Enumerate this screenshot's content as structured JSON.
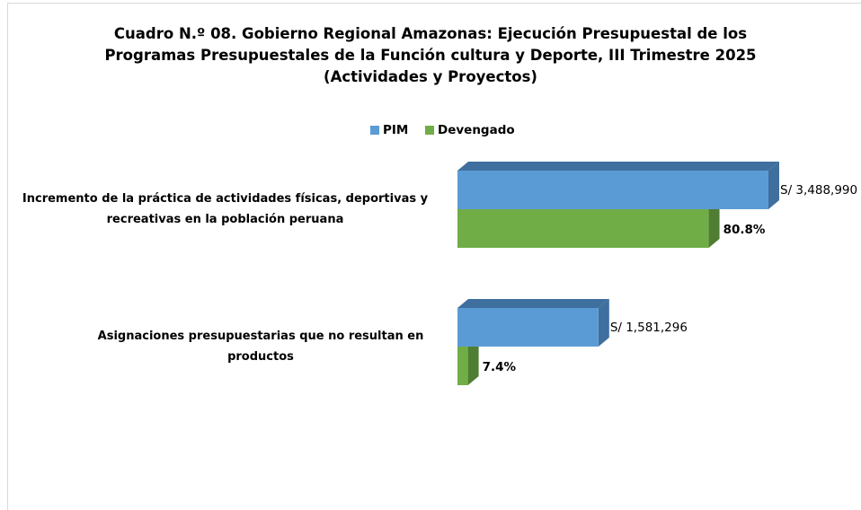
{
  "chart_data": {
    "type": "bar3d-horizontal",
    "title": "Cuadro N.º 08. Gobierno Regional Amazonas: Ejecución Presupuestal de los Programas Presupuestales de la Función cultura y Deporte, III Trimestre 2025 (Actividades y Proyectos)",
    "categories": [
      "Incremento de la práctica de actividades físicas, deportivas y recreativas en la población peruana",
      "Asignaciones presupuestarias que no resultan en productos"
    ],
    "series": [
      {
        "name": "PIM",
        "color": "#5b9bd5",
        "side_color": "#3f6f9e",
        "values": [
          3488990,
          1581296
        ],
        "value_labels": [
          "S/ 3,488,990",
          "S/ 1,581,296"
        ]
      },
      {
        "name": "Devengado",
        "color": "#70ad47",
        "side_color": "#4f7d32",
        "values": [
          80.8,
          7.4
        ],
        "value_labels": [
          "80.8%",
          "7.4%"
        ]
      }
    ],
    "legend": "top"
  }
}
